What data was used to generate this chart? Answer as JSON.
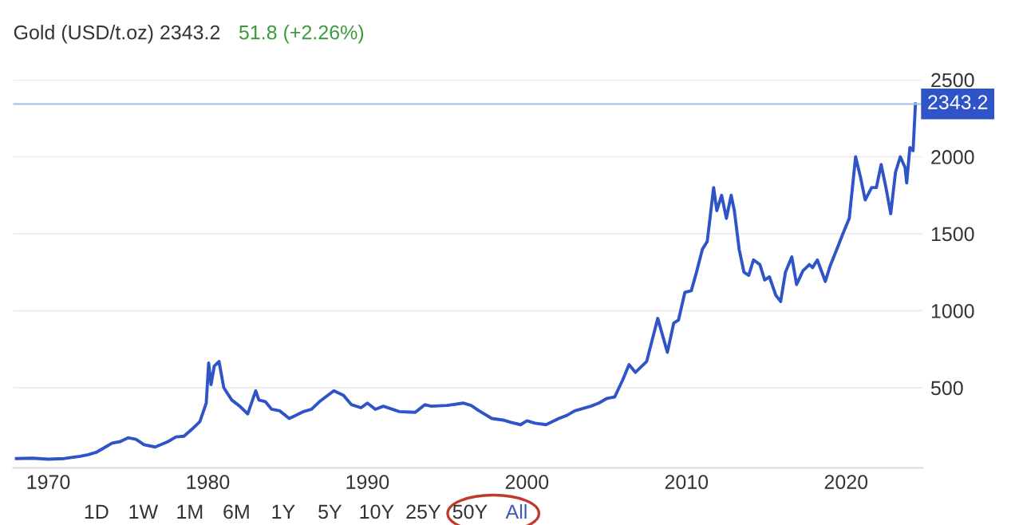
{
  "chart_data": {
    "type": "line",
    "title": "Gold (USD/t.oz) 2343.2",
    "subtitle": "51.8 (+2.26%)",
    "x": [
      1968.0,
      1969.0,
      1970.0,
      1971.0,
      1972.0,
      1972.5,
      1973.0,
      1973.5,
      1974.0,
      1974.5,
      1975.0,
      1975.5,
      1976.0,
      1976.7,
      1977.5,
      1978.0,
      1978.5,
      1979.0,
      1979.5,
      1979.9,
      1980.05,
      1980.2,
      1980.4,
      1980.7,
      1981.0,
      1981.5,
      1982.0,
      1982.5,
      1983.0,
      1983.2,
      1983.6,
      1984.0,
      1984.5,
      1985.1,
      1985.5,
      1986.0,
      1986.5,
      1987.0,
      1987.9,
      1988.5,
      1989.0,
      1989.6,
      1990.0,
      1990.5,
      1991.0,
      1992.0,
      1993.0,
      1993.6,
      1994.0,
      1995.0,
      1996.0,
      1996.5,
      1997.0,
      1997.8,
      1998.5,
      1999.0,
      1999.6,
      2000.0,
      2000.5,
      2001.2,
      2002.0,
      2002.5,
      2003.0,
      2004.0,
      2004.5,
      2005.0,
      2005.5,
      2006.0,
      2006.4,
      2006.8,
      2007.5,
      2008.2,
      2008.8,
      2009.2,
      2009.5,
      2009.9,
      2010.3,
      2010.6,
      2011.0,
      2011.3,
      2011.7,
      2011.9,
      2012.2,
      2012.5,
      2012.8,
      2013.0,
      2013.3,
      2013.6,
      2013.9,
      2014.2,
      2014.6,
      2014.9,
      2015.2,
      2015.6,
      2015.9,
      2016.2,
      2016.6,
      2016.9,
      2017.3,
      2017.7,
      2017.9,
      2018.2,
      2018.7,
      2019.0,
      2019.5,
      2019.8,
      2020.2,
      2020.6,
      2020.9,
      2021.2,
      2021.6,
      2021.9,
      2022.2,
      2022.5,
      2022.8,
      2023.1,
      2023.4,
      2023.7,
      2023.8,
      2024.0,
      2024.2,
      2024.35
    ],
    "values": [
      40,
      42,
      36,
      40,
      55,
      65,
      80,
      110,
      140,
      150,
      175,
      165,
      130,
      115,
      150,
      180,
      185,
      230,
      280,
      400,
      660,
      520,
      640,
      670,
      500,
      420,
      380,
      330,
      480,
      420,
      410,
      360,
      350,
      300,
      320,
      345,
      360,
      410,
      480,
      450,
      390,
      370,
      400,
      360,
      380,
      345,
      340,
      390,
      380,
      385,
      400,
      385,
      350,
      300,
      290,
      275,
      260,
      285,
      270,
      260,
      300,
      320,
      350,
      380,
      400,
      430,
      440,
      550,
      650,
      600,
      670,
      950,
      730,
      920,
      940,
      1120,
      1130,
      1240,
      1400,
      1450,
      1800,
      1650,
      1750,
      1600,
      1750,
      1650,
      1400,
      1250,
      1230,
      1330,
      1300,
      1200,
      1220,
      1100,
      1060,
      1250,
      1350,
      1170,
      1260,
      1300,
      1280,
      1330,
      1190,
      1290,
      1420,
      1500,
      1600,
      2000,
      1870,
      1720,
      1800,
      1800,
      1950,
      1800,
      1630,
      1900,
      2000,
      1930,
      1830,
      2060,
      2040,
      2343
    ],
    "color": "#2f54c8",
    "xlim": [
      1967.8,
      2024.8
    ],
    "ylim": [
      -20,
      2500
    ],
    "xticks": [
      1970,
      1980,
      1990,
      2000,
      2010,
      2020
    ],
    "yticks": [
      500,
      1000,
      1500,
      2000,
      2500
    ],
    "grid": "y",
    "marker": "none",
    "line_style": "solid",
    "ref_lines": [
      {
        "axis": "y",
        "value": 2343.2,
        "label": "2343.2",
        "color": "#a9c3e8"
      }
    ],
    "annotations": [
      "1D",
      "1W",
      "1M",
      "6M",
      "1Y",
      "5Y",
      "10Y",
      "25Y",
      "50Y",
      "All"
    ]
  }
}
